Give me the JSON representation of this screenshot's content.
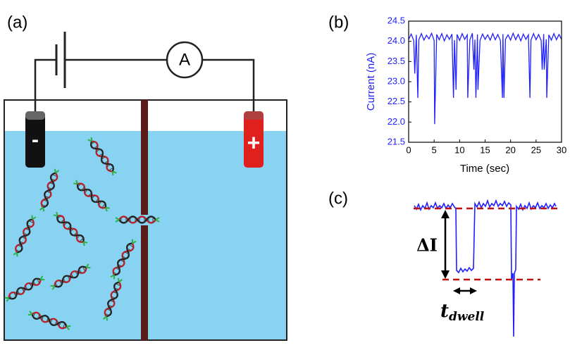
{
  "panel_labels": [
    "(a)",
    "(b)",
    "(c)"
  ],
  "ammeter_label": "A",
  "electrode_signs": [
    "-",
    "+"
  ],
  "delta_i_label": "ΔI",
  "dwell_label": {
    "main": "t",
    "subscript": "dwell"
  },
  "chart_data": {
    "type": "line",
    "y_label": "Current (nA)",
    "x_label": "Time (sec)",
    "color": "#1f1fff",
    "xlim": [
      0,
      30
    ],
    "xticks": [
      0,
      5,
      10,
      15,
      20,
      25,
      30
    ],
    "ylim": [
      21.5,
      24.5
    ],
    "yticks": [
      21.5,
      {
        "value": 22,
        "label": "22.0"
      },
      22.5,
      {
        "value": 23,
        "label": "23.0"
      },
      23.5,
      {
        "value": 24,
        "label": "24.0"
      },
      24.5
    ],
    "x": [
      0,
      0.5,
      1,
      1.2,
      1.5,
      1.8,
      2,
      2.5,
      3,
      3.5,
      4,
      4.5,
      5,
      5.1,
      5.5,
      6,
      6.5,
      7,
      7.5,
      8,
      8.5,
      8.8,
      9,
      9.3,
      9.5,
      10,
      10.5,
      11,
      11.5,
      11.6,
      12,
      12.5,
      12.8,
      13,
      13.2,
      13.5,
      13.6,
      14,
      14.5,
      15,
      15.5,
      16,
      16.5,
      17,
      17.5,
      18,
      18.4,
      18.5,
      18.7,
      19,
      19.5,
      20,
      20.5,
      21,
      21.5,
      22,
      22.5,
      23,
      23.5,
      23.8,
      24,
      24.5,
      25,
      25.5,
      26,
      26.2,
      26.5,
      26.6,
      27,
      27.1,
      27.5,
      28,
      28.5,
      29,
      29.5,
      30
    ],
    "values": [
      24.05,
      24.18,
      24.02,
      23.2,
      24.16,
      22.6,
      24.04,
      24.19,
      24.03,
      24.15,
      24.06,
      24.2,
      24.02,
      21.95,
      24.17,
      24.04,
      24.19,
      24.01,
      24.16,
      24.05,
      24.18,
      22.6,
      24.03,
      22.8,
      24.17,
      24.02,
      24.19,
      24.05,
      24.16,
      22.6,
      24.03,
      24.2,
      23.3,
      24.04,
      22.6,
      24.17,
      22.8,
      24.02,
      24.18,
      24.05,
      24.16,
      24.03,
      24.19,
      24.04,
      24.17,
      24.02,
      22.6,
      24.18,
      22.6,
      24.05,
      24.16,
      24.03,
      24.2,
      24.04,
      24.17,
      24.01,
      24.18,
      24.05,
      24.16,
      22.6,
      24.03,
      24.19,
      24.04,
      24.17,
      24.02,
      23.3,
      24.18,
      23.3,
      24.05,
      22.6,
      24.16,
      24.03,
      24.19,
      24.04,
      24.17,
      24.05
    ]
  }
}
